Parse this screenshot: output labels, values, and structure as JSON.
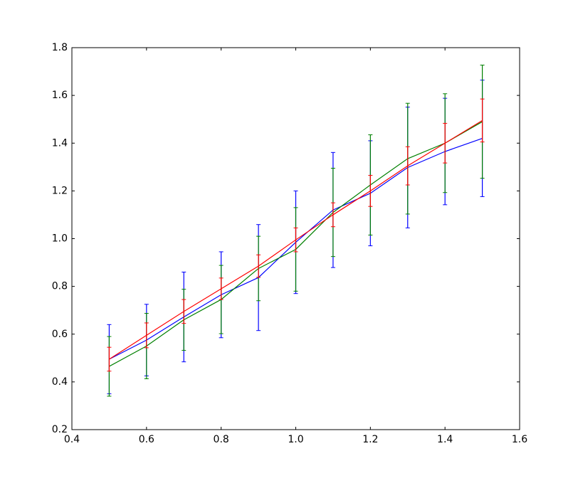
{
  "chart_data": {
    "type": "errorbar-line",
    "x": [
      0.5,
      0.6,
      0.7,
      0.8,
      0.9,
      1.0,
      1.1,
      1.2,
      1.3,
      1.4,
      1.5
    ],
    "series": [
      {
        "color": "#0000ff",
        "values": [
          0.495,
          0.575,
          0.672,
          0.765,
          0.837,
          0.985,
          1.12,
          1.19,
          1.298,
          1.365,
          1.42
        ],
        "errors": [
          0.145,
          0.15,
          0.188,
          0.18,
          0.222,
          0.215,
          0.241,
          0.22,
          0.253,
          0.223,
          0.244
        ]
      },
      {
        "color": "#008000",
        "values": [
          0.465,
          0.55,
          0.66,
          0.745,
          0.875,
          0.955,
          1.11,
          1.225,
          1.335,
          1.4,
          1.49
        ],
        "errors": [
          0.125,
          0.137,
          0.128,
          0.143,
          0.135,
          0.175,
          0.185,
          0.21,
          0.232,
          0.207,
          0.237
        ]
      },
      {
        "color": "#ff0000",
        "values": [
          0.495,
          0.595,
          0.695,
          0.79,
          0.885,
          0.995,
          1.1,
          1.2,
          1.305,
          1.4,
          1.495
        ],
        "errors": [
          0.05,
          0.052,
          0.05,
          0.045,
          0.047,
          0.05,
          0.05,
          0.065,
          0.08,
          0.083,
          0.09
        ]
      }
    ],
    "xlim": [
      0.4,
      1.6
    ],
    "ylim": [
      0.2,
      1.8
    ],
    "xticks": [
      0.4,
      0.6,
      0.8,
      {
        "value": 1.0,
        "label": "1.0"
      },
      1.2,
      1.4,
      1.6
    ],
    "yticks": [
      0.2,
      0.4,
      0.6,
      0.8,
      {
        "value": 1.0,
        "label": "1.0"
      },
      1.2,
      1.4,
      1.6,
      1.8
    ],
    "grid": false
  }
}
